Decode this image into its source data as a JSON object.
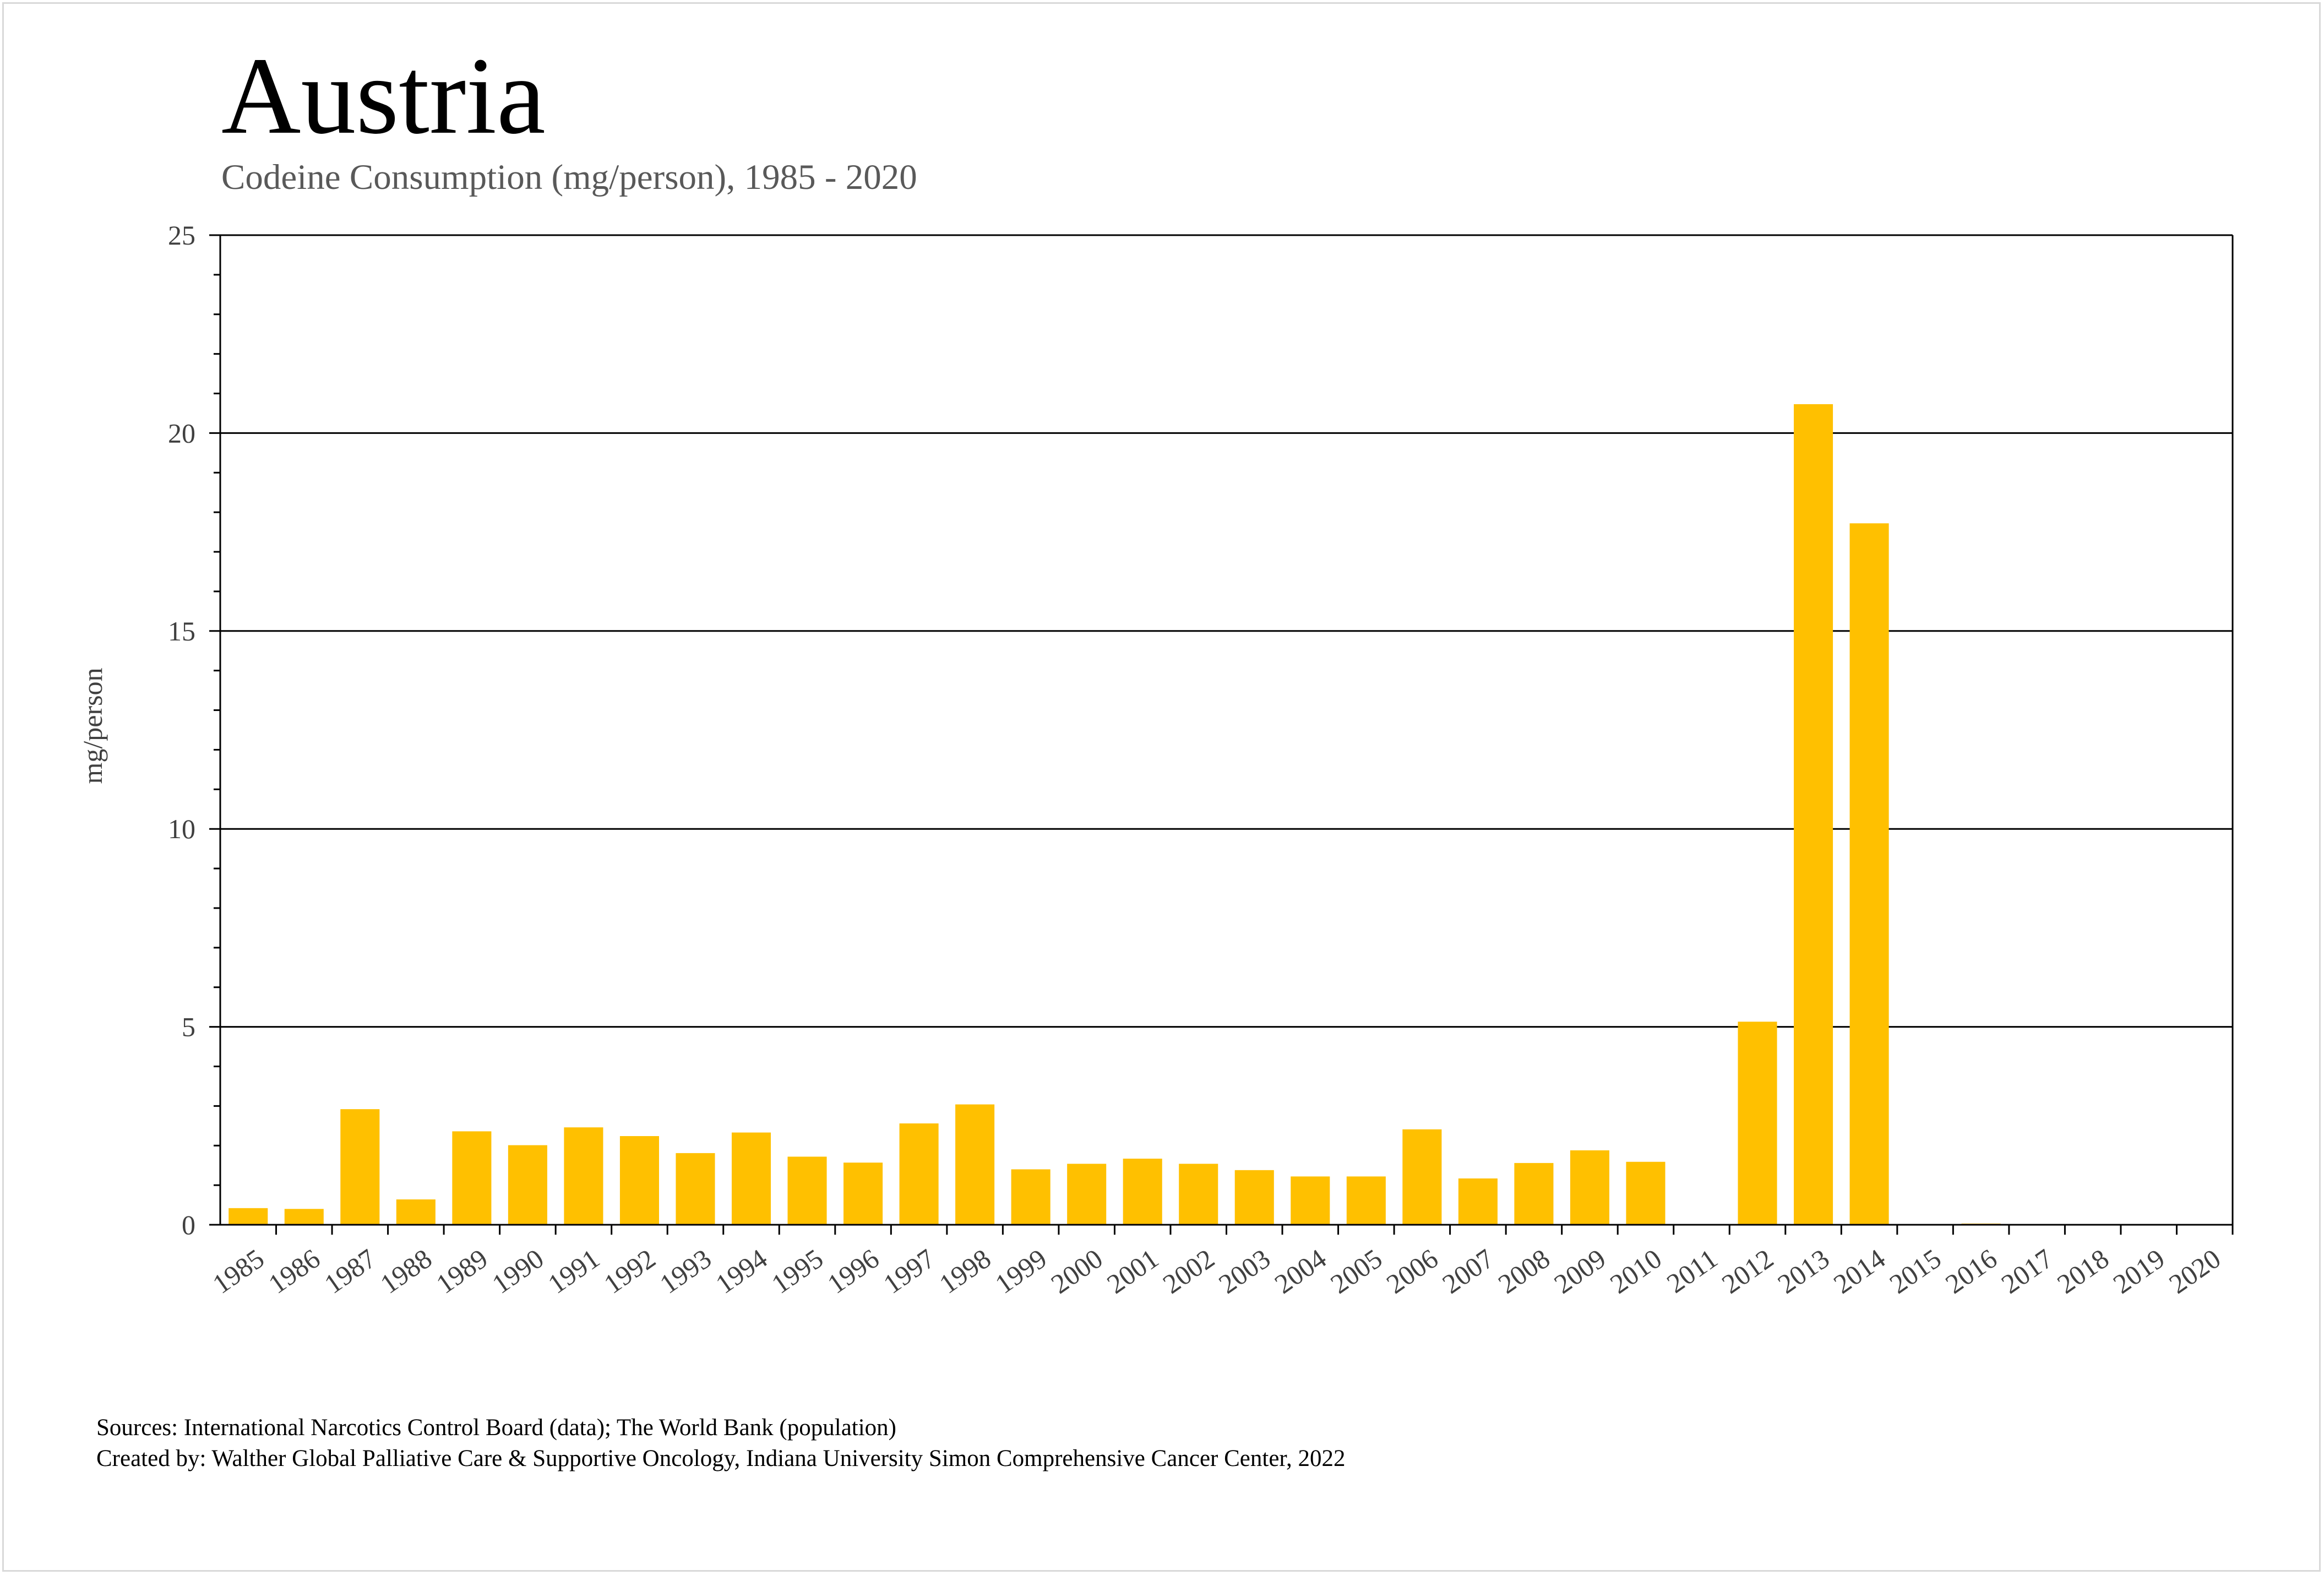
{
  "chart_data": {
    "type": "bar",
    "title": "Austria",
    "subtitle": "Codeine Consumption (mg/person), 1985 - 2020",
    "xlabel": "",
    "ylabel": "mg/person",
    "ylim": [
      0,
      25
    ],
    "yticks": [
      "0",
      "5",
      "10",
      "15",
      "20",
      "25"
    ],
    "grid": true,
    "legend": "none",
    "bar_color": "#FFC000",
    "categories": [
      "1985",
      "1986",
      "1987",
      "1988",
      "1989",
      "1990",
      "1991",
      "1992",
      "1993",
      "1994",
      "1995",
      "1996",
      "1997",
      "1998",
      "1999",
      "2000",
      "2001",
      "2002",
      "2003",
      "2004",
      "2005",
      "2006",
      "2007",
      "2008",
      "2009",
      "2010",
      "2011",
      "2012",
      "2013",
      "2014",
      "2015",
      "2016",
      "2017",
      "2018",
      "2019",
      "2020"
    ],
    "values": [
      0.42,
      0.4,
      2.92,
      0.64,
      2.36,
      2.01,
      2.46,
      2.24,
      1.81,
      2.33,
      1.72,
      1.57,
      2.56,
      3.04,
      1.4,
      1.54,
      1.67,
      1.54,
      1.38,
      1.22,
      1.22,
      2.41,
      1.17,
      1.56,
      1.88,
      1.59,
      0,
      5.13,
      20.73,
      17.72,
      0,
      0.03,
      0,
      0,
      0,
      0
    ]
  },
  "footer": {
    "sources": "Sources: International Narcotics Control Board (data); The World Bank (population)",
    "created_by": "Created by: Walther Global Palliative Care & Supportive Oncology, Indiana University Simon Comprehensive Cancer Center, 2022"
  }
}
